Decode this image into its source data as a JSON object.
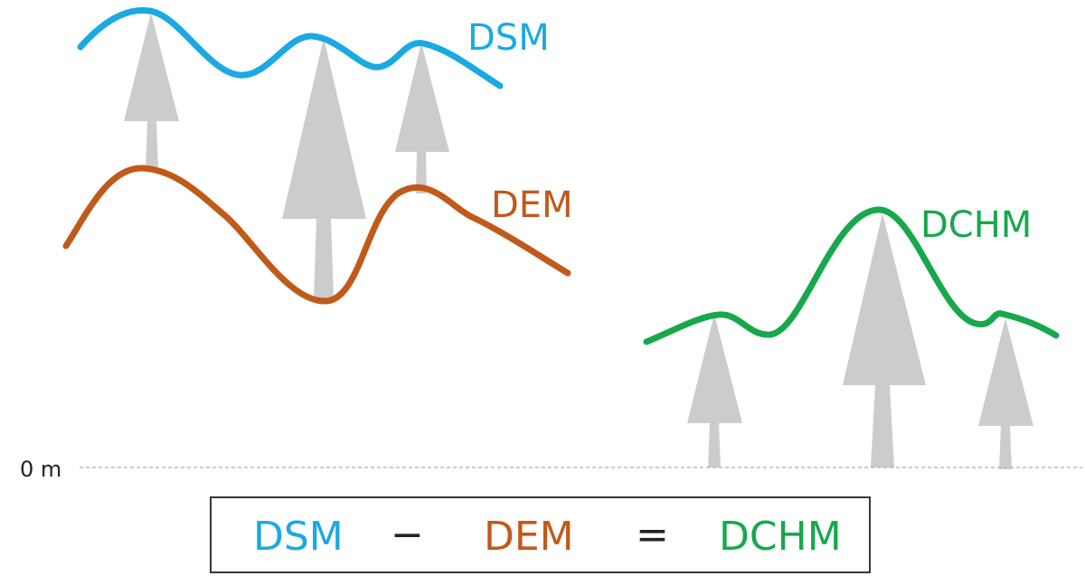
{
  "colors": {
    "dsm": "#1aa9e2",
    "dem": "#c05a1a",
    "dchm": "#17a84b",
    "tree": "#cdcccc",
    "baseline": "#9bb4bc",
    "text": "#222222",
    "box_border": "#222222"
  },
  "labels": {
    "dsm": "DSM",
    "dem": "DEM",
    "dchm": "DCHM",
    "zero": "0 m"
  },
  "equation": {
    "term1": "DSM",
    "minus": "−",
    "term2": "DEM",
    "equals": "=",
    "result": "DCHM"
  }
}
